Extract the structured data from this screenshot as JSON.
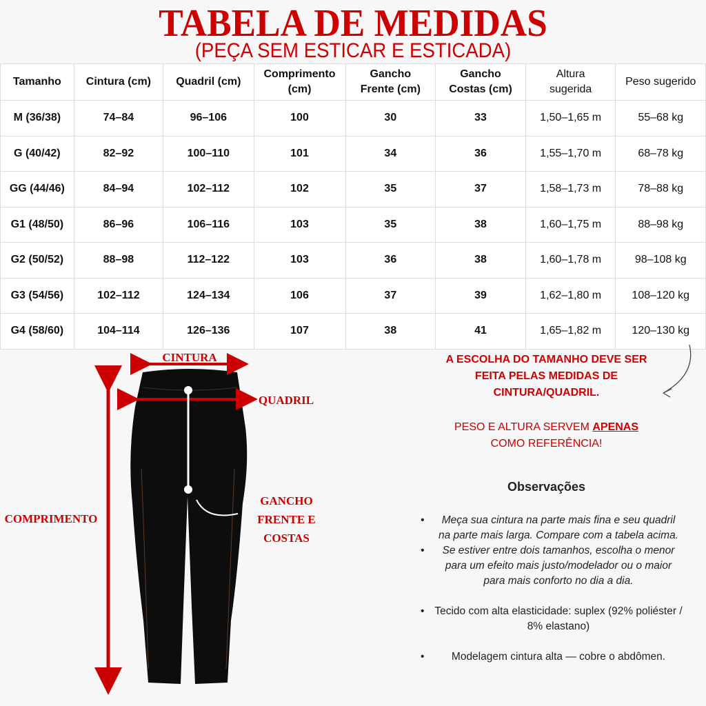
{
  "title": "TABELA DE MEDIDAS",
  "subtitle": "(PEÇA SEM ESTICAR E ESTICADA)",
  "table": {
    "headers": [
      "Tamanho",
      "Cintura (cm)",
      "Quadril (cm)",
      "Comprimento (cm)",
      "Gancho Frente (cm)",
      "Gancho Costas (cm)",
      "Altura sugerida",
      "Peso sugerido"
    ],
    "rows": [
      [
        "M (36/38)",
        "74–84",
        "96–106",
        "100",
        "30",
        "33",
        "1,50–1,65 m",
        "55–68 kg"
      ],
      [
        "G (40/42)",
        "82–92",
        "100–110",
        "101",
        "34",
        "36",
        "1,55–1,70 m",
        "68–78 kg"
      ],
      [
        "GG (44/46)",
        "84–94",
        "102–112",
        "102",
        "35",
        "37",
        "1,58–1,73 m",
        "78–88 kg"
      ],
      [
        "G1 (48/50)",
        "86–96",
        "106–116",
        "103",
        "35",
        "38",
        "1,60–1,75 m",
        "88–98 kg"
      ],
      [
        "G2 (50/52)",
        "88–98",
        "112–122",
        "103",
        "36",
        "38",
        "1,60–1,78 m",
        "98–108 kg"
      ],
      [
        "G3 (54/56)",
        "102–112",
        "124–134",
        "106",
        "37",
        "39",
        "1,62–1,80 m",
        "108–120 kg"
      ],
      [
        "G4 (58/60)",
        "104–114",
        "126–136",
        "107",
        "38",
        "41",
        "1,65–1,82 m",
        "120–130 kg"
      ]
    ]
  },
  "diagram": {
    "cintura": "CINTURA",
    "quadril": "QUADRIL",
    "comprimento": "COMPRIMENTO",
    "gancho": "GANCHO FRENTE E COSTAS"
  },
  "notes": {
    "choice": "A ESCOLHA DO TAMANHO DEVE SER FEITA PELAS MEDIDAS DE CINTURA/QUADRIL.",
    "reference_pre": "PESO E ALTURA SERVEM ",
    "reference_emph": "APENAS",
    "reference_post": "COMO REFERÊNCIA!"
  },
  "observations": {
    "title": "Observações",
    "items": [
      "Meça sua cintura na parte mais fina e seu quadril na parte mais larga. Compare com a tabela acima.",
      "Se estiver entre dois tamanhos, escolha o menor para um efeito mais justo/modelador ou o maior para mais conforto no dia a dia.",
      "Tecido com alta elasticidade: suplex (92% poliéster / 8% elastano)",
      "Modelagem cintura alta — cobre o abdômen."
    ]
  },
  "colors": {
    "accent": "#cc0000",
    "garment": "#0d0d0d"
  }
}
